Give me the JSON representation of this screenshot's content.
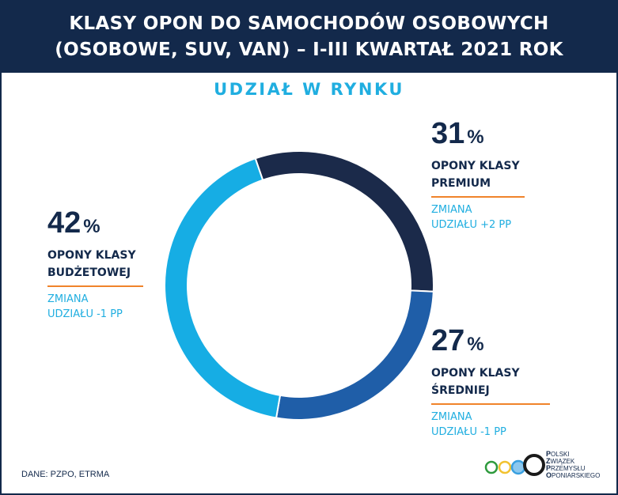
{
  "header": {
    "title_line1": "KLASY OPON DO SAMOCHODÓW OSOBOWYCH",
    "title_line2": "(OSOBOWE, SUV, VAN) – I-III KWARTAŁ 2021 ROK"
  },
  "subtitle": "UDZIAŁ W RYNKU",
  "chart_data": {
    "type": "pie",
    "style": "donut",
    "series": [
      {
        "name": "OPONY KLASY PREMIUM",
        "value": 31,
        "change": "+2 PP",
        "color": "#1b2a4a"
      },
      {
        "name": "OPONY KLASY ŚREDNIEJ",
        "value": 27,
        "change": "-1 PP",
        "color": "#1f5ea8"
      },
      {
        "name": "OPONY KLASY BUDŻETOWEJ",
        "value": 42,
        "change": "-1 PP",
        "color": "#16ade4"
      }
    ]
  },
  "labels": {
    "premium": {
      "pct": "31",
      "sign": "%",
      "name1": "OPONY KLASY",
      "name2": "PREMIUM",
      "change1": "ZMIANA",
      "change2": "UDZIAŁU +2 PP"
    },
    "srednia": {
      "pct": "27",
      "sign": "%",
      "name1": "OPONY KLASY",
      "name2": "ŚREDNIEJ",
      "change1": "ZMIANA",
      "change2": "UDZIAŁU -1 PP"
    },
    "budzet": {
      "pct": "42",
      "sign": "%",
      "name1": "OPONY KLASY",
      "name2": "BUDŻETOWEJ",
      "change1": "ZMIANA",
      "change2": "UDZIAŁU -1 PP"
    }
  },
  "source": "DANE: PZPO, ETRMA",
  "logo": {
    "line1_initial": "P",
    "line1_rest": "OLSKI",
    "line2_initial": "Z",
    "line2_rest": "WIĄZEK",
    "line3_initial": "P",
    "line3_rest": "RZEMYSŁU",
    "line4_initial": "O",
    "line4_rest": "PONIARSKIEGO",
    "ring_colors": [
      "#2e9a3d",
      "#f2c230",
      "#3aa0e0",
      "#1a1a1a"
    ]
  }
}
